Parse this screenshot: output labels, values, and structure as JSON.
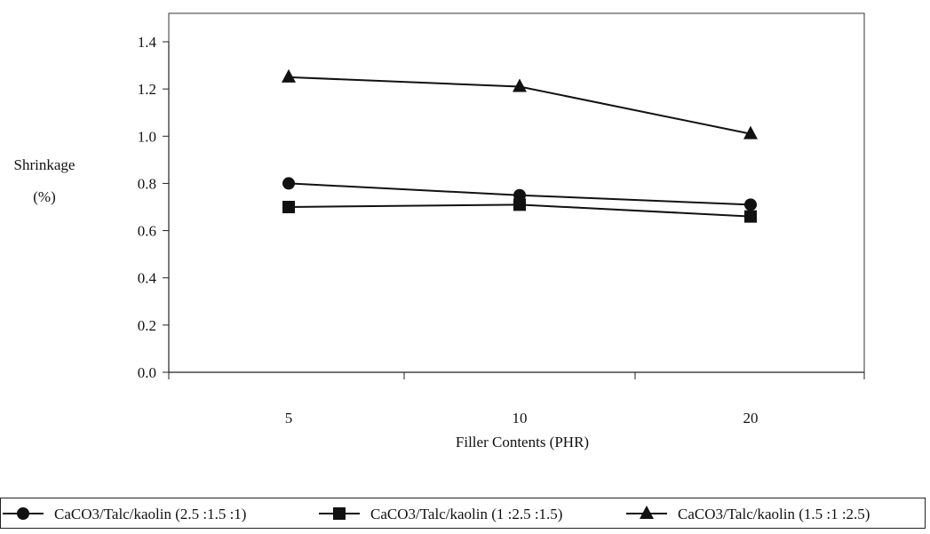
{
  "chart_data": {
    "type": "line",
    "categories": [
      "5",
      "10",
      "20"
    ],
    "xlabel": "Filler Contents (PHR)",
    "ylabel_line1": "Shrinkage",
    "ylabel_line2": "(%)",
    "ylim": [
      0,
      1.4
    ],
    "yticks": [
      "0.0",
      "0.2",
      "0.4",
      "0.6",
      "0.8",
      "1.0",
      "1.2",
      "1.4"
    ],
    "grid": false,
    "legend_position": "bottom",
    "series": [
      {
        "name": "CaCO3/Talc/kaolin (2.5 :1.5 :1)",
        "marker": "circle",
        "values": [
          0.8,
          0.75,
          0.71
        ],
        "color": "#111111"
      },
      {
        "name": "CaCO3/Talc/kaolin (1 :2.5 :1.5)",
        "marker": "square",
        "values": [
          0.7,
          0.71,
          0.66
        ],
        "color": "#111111"
      },
      {
        "name": "CaCO3/Talc/kaolin (1.5 :1 :2.5)",
        "marker": "triangle",
        "values": [
          1.25,
          1.21,
          1.01
        ],
        "color": "#111111"
      }
    ]
  }
}
